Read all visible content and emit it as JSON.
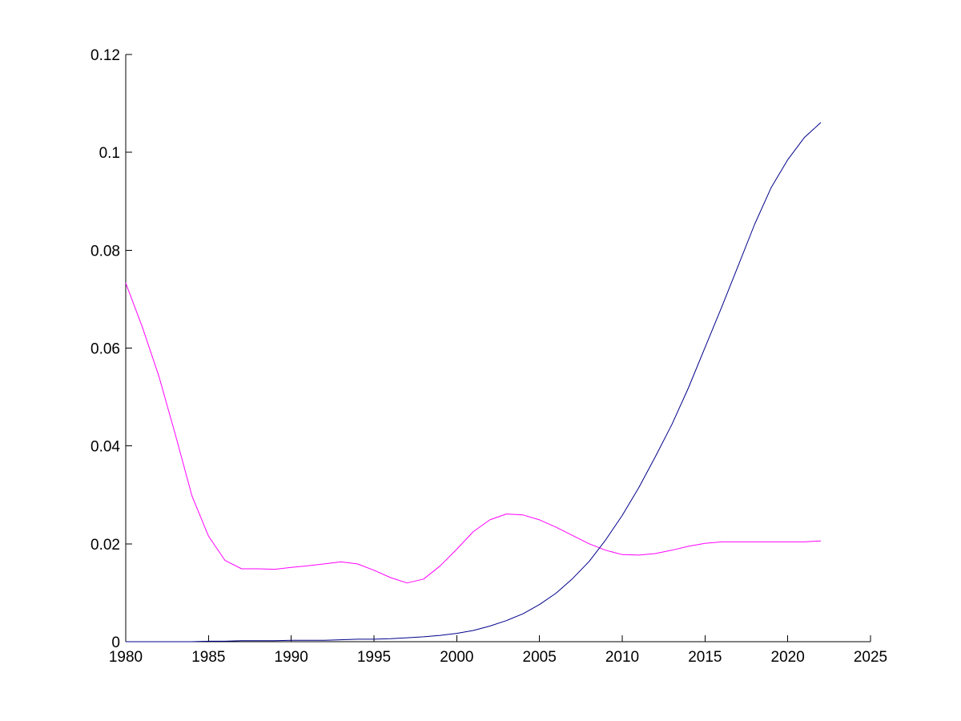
{
  "chart_data": {
    "type": "line",
    "title": "",
    "xlabel": "",
    "ylabel": "",
    "xlim": [
      1980,
      2025
    ],
    "ylim": [
      0,
      0.12
    ],
    "grid": false,
    "legend": "none",
    "x_ticks": [
      "1980",
      "1985",
      "1990",
      "1995",
      "2000",
      "2005",
      "2010",
      "2015",
      "2020",
      "2025"
    ],
    "y_ticks": [
      "0",
      "0.02",
      "0.04",
      "0.06",
      "0.08",
      "0.1",
      "0.12"
    ],
    "x": [
      1980,
      1981,
      1982,
      1983,
      1984,
      1985,
      1986,
      1987,
      1988,
      1989,
      1990,
      1991,
      1992,
      1993,
      1994,
      1995,
      1996,
      1997,
      1998,
      1999,
      2000,
      2001,
      2002,
      2003,
      2004,
      2005,
      2006,
      2007,
      2008,
      2009,
      2010,
      2011,
      2012,
      2013,
      2014,
      2015,
      2016,
      2017,
      2018,
      2019,
      2020,
      2021,
      2022
    ],
    "series": [
      {
        "color": "#ff00ff",
        "values": [
          0.0733,
          0.0643,
          0.0543,
          0.0423,
          0.0298,
          0.0216,
          0.0166,
          0.0149,
          0.0149,
          0.0148,
          0.0152,
          0.0155,
          0.0159,
          0.0163,
          0.0159,
          0.0146,
          0.0131,
          0.012,
          0.0128,
          0.0155,
          0.0189,
          0.0225,
          0.0249,
          0.0261,
          0.0259,
          0.0249,
          0.0234,
          0.0217,
          0.02,
          0.0187,
          0.0178,
          0.0177,
          0.018,
          0.0187,
          0.0195,
          0.0201,
          0.0204,
          0.0204,
          0.0204,
          0.0204,
          0.0204,
          0.0204,
          0.0206
        ]
      },
      {
        "color": "#00008b",
        "values": [
          0.0,
          0.0,
          0.0,
          0.0,
          0.0,
          0.0001,
          0.0001,
          0.0002,
          0.0002,
          0.0002,
          0.0003,
          0.0003,
          0.0003,
          0.0004,
          0.0005,
          0.0005,
          0.0006,
          0.0008,
          0.001,
          0.0013,
          0.0017,
          0.0023,
          0.0032,
          0.0043,
          0.0057,
          0.0076,
          0.0099,
          0.0129,
          0.0164,
          0.0208,
          0.0258,
          0.0315,
          0.0378,
          0.0444,
          0.0519,
          0.0601,
          0.0683,
          0.0768,
          0.0853,
          0.0928,
          0.0985,
          0.103,
          0.1061
        ]
      }
    ]
  }
}
